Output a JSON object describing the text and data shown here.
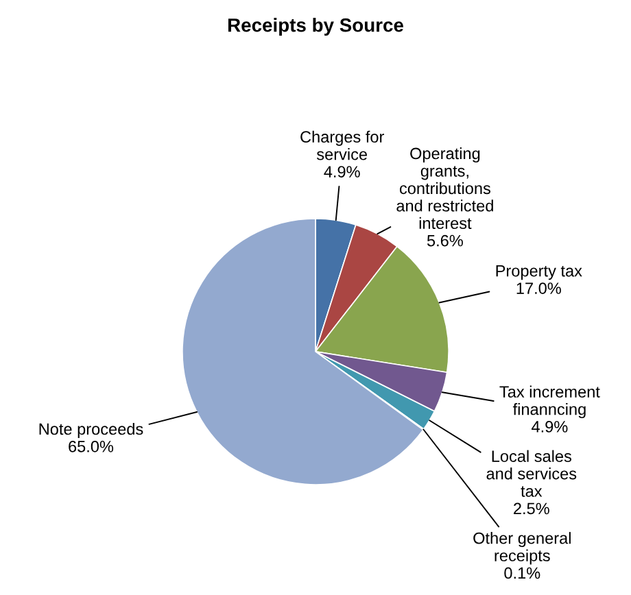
{
  "chart_data": {
    "type": "pie",
    "title": "Receipts by Source",
    "categories": [
      "Charges for\nservice",
      "Operating\ngrants,\ncontributions\nand restricted\ninterest",
      "Property tax",
      "Tax increment\nfinanncing",
      "Local sales\nand services\ntax",
      "Other general\nreceipts",
      "Note proceeds"
    ],
    "values": [
      4.9,
      5.6,
      17.0,
      4.9,
      2.5,
      0.1,
      65.0
    ],
    "value_labels": [
      "4.9%",
      "5.6%",
      "17.0%",
      "4.9%",
      "2.5%",
      "0.1%",
      "65.0%"
    ],
    "colors": [
      "#4572a7",
      "#aa4643",
      "#89a54e",
      "#71588f",
      "#4198af",
      "#db843d",
      "#93a9cf"
    ]
  }
}
